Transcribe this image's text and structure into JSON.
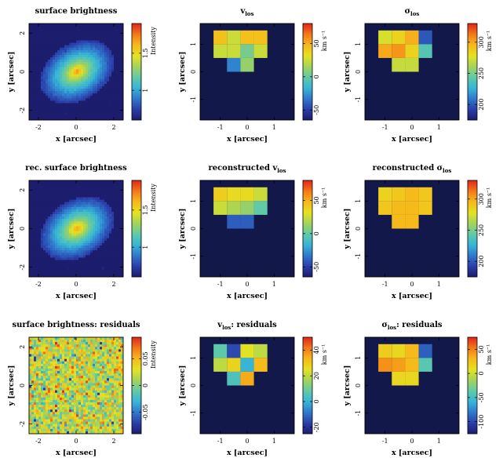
{
  "palette": [
    "#1d1d6e",
    "#2a3da8",
    "#2f78cc",
    "#37b5d6",
    "#5fc9a8",
    "#a4d35a",
    "#e3e222",
    "#f7b91b",
    "#f47a18",
    "#e0251a"
  ],
  "background_color": "#13184a",
  "chart_data": [
    {
      "type": "heatmap",
      "kind": "image",
      "title_main": "surface brightness",
      "title_sub": "",
      "xlabel": "x [arcsec]",
      "ylabel": "y [arcsec]",
      "xlim": [
        -2.5,
        2.5
      ],
      "ylim": [
        -2.5,
        2.5
      ],
      "xticks": [
        -2,
        0,
        2
      ],
      "yticks": [
        -2,
        0,
        2
      ],
      "colorbar": {
        "label": "Intensity",
        "ticks": [
          1,
          1.5
        ],
        "range": [
          0.6,
          1.9
        ]
      },
      "model": {
        "center": [
          0.05,
          0.0
        ],
        "axis_ratio": 0.7,
        "position_angle_deg": 30,
        "noise": false
      }
    },
    {
      "type": "heatmap",
      "kind": "grid",
      "title_main": "v",
      "title_sub": "los",
      "xlabel": "x [arcsec]",
      "ylabel": "y [arcsec]",
      "xlim": [
        -1.75,
        1.75
      ],
      "ylim": [
        -1.75,
        1.75
      ],
      "xticks": [
        -1,
        0,
        1
      ],
      "yticks": [
        -1,
        0,
        1
      ],
      "colorbar": {
        "label": "km s⁻¹",
        "ticks": [
          -50,
          0,
          50
        ],
        "range": [
          -65,
          80
        ]
      },
      "grid": {
        "x0": -1.25,
        "y0": 1.25,
        "cell": 0.5,
        "cols": 5,
        "rows": [
          [
            45,
            25,
            45,
            45,
            null
          ],
          [
            25,
            25,
            5,
            25,
            null
          ],
          [
            null,
            -30,
            12,
            null,
            null
          ]
        ]
      }
    },
    {
      "type": "heatmap",
      "kind": "grid",
      "title_main": "σ",
      "title_sub": "los",
      "xlabel": "x [arcsec]",
      "ylabel": "y [arcsec]",
      "xlim": [
        -1.75,
        1.75
      ],
      "ylim": [
        -1.75,
        1.75
      ],
      "xticks": [
        -1,
        0,
        1
      ],
      "yticks": [
        -1,
        0,
        1
      ],
      "colorbar": {
        "label": "km s⁻¹",
        "ticks": [
          200,
          250,
          300
        ],
        "range": [
          175,
          330
        ]
      },
      "grid": {
        "x0": -1.25,
        "y0": 1.25,
        "cell": 0.5,
        "cols": 5,
        "rows": [
          [
            275,
            285,
            298,
            200,
            null
          ],
          [
            300,
            305,
            285,
            240,
            null
          ],
          [
            null,
            270,
            270,
            null,
            null
          ]
        ]
      }
    },
    {
      "type": "heatmap",
      "kind": "image",
      "title_main": "rec. surface brightness",
      "title_sub": "",
      "xlabel": "x [arcsec]",
      "ylabel": "y [arcsec]",
      "xlim": [
        -2.5,
        2.5
      ],
      "ylim": [
        -2.5,
        2.5
      ],
      "xticks": [
        -2,
        0,
        2
      ],
      "yticks": [
        -2,
        0,
        2
      ],
      "colorbar": {
        "label": "Intensity",
        "ticks": [
          1,
          1.5
        ],
        "range": [
          0.6,
          1.9
        ]
      },
      "model": {
        "center": [
          0.05,
          0.0
        ],
        "axis_ratio": 0.7,
        "position_angle_deg": 30,
        "noise": false
      }
    },
    {
      "type": "heatmap",
      "kind": "grid",
      "title_main": "reconstructed v",
      "title_sub": "los",
      "xlabel": "x [arcsec]",
      "ylabel": "y [arcsec]",
      "xlim": [
        -1.75,
        1.75
      ],
      "ylim": [
        -1.75,
        1.75
      ],
      "xticks": [
        -1,
        0,
        1
      ],
      "yticks": [
        -1,
        0,
        1
      ],
      "colorbar": {
        "label": "km s⁻¹",
        "ticks": [
          -50,
          0,
          50
        ],
        "range": [
          -65,
          80
        ]
      },
      "grid": {
        "x0": -1.25,
        "y0": 1.25,
        "cell": 0.5,
        "cols": 5,
        "rows": [
          [
            40,
            35,
            35,
            25,
            null
          ],
          [
            25,
            18,
            12,
            0,
            null
          ],
          [
            null,
            -40,
            -40,
            null,
            null
          ]
        ]
      }
    },
    {
      "type": "heatmap",
      "kind": "grid",
      "title_main": "reconstructed σ",
      "title_sub": "los",
      "xlabel": "x [arcsec]",
      "ylabel": "y [arcsec]",
      "xlim": [
        -1.75,
        1.75
      ],
      "ylim": [
        -1.75,
        1.75
      ],
      "xticks": [
        -1,
        0,
        1
      ],
      "yticks": [
        -1,
        0,
        1
      ],
      "colorbar": {
        "label": "km s⁻¹",
        "ticks": [
          200,
          250,
          300
        ],
        "range": [
          175,
          330
        ]
      },
      "grid": {
        "x0": -1.25,
        "y0": 1.25,
        "cell": 0.5,
        "cols": 5,
        "rows": [
          [
            285,
            290,
            295,
            290,
            null
          ],
          [
            290,
            295,
            295,
            290,
            null
          ],
          [
            null,
            295,
            295,
            null,
            null
          ]
        ]
      }
    },
    {
      "type": "heatmap",
      "kind": "image",
      "title_main": "surface brightness: residuals",
      "title_sub": "",
      "xlabel": "x [arcsec]",
      "ylabel": "y [arcsec]",
      "xlim": [
        -2.5,
        2.5
      ],
      "ylim": [
        -2.5,
        2.5
      ],
      "xticks": [
        -2,
        0,
        2
      ],
      "yticks": [
        -2,
        0,
        2
      ],
      "colorbar": {
        "label": "Intensity",
        "ticks": [
          -0.05,
          0,
          0.05
        ],
        "range": [
          -0.09,
          0.09
        ]
      },
      "model": {
        "noise": true,
        "mean": 0.02,
        "spread": 0.025
      }
    },
    {
      "type": "heatmap",
      "kind": "grid",
      "title_main": "v",
      "title_sub": "los",
      "title_suffix": ": residuals",
      "xlabel": "x [arcsec]",
      "ylabel": "y [arcsec]",
      "xlim": [
        -1.75,
        1.75
      ],
      "ylim": [
        -1.75,
        1.75
      ],
      "xticks": [
        -1,
        0,
        1
      ],
      "yticks": [
        -1,
        0,
        1
      ],
      "colorbar": {
        "label": "km s⁻¹",
        "ticks": [
          -20,
          0,
          20,
          40
        ],
        "range": [
          -25,
          50
        ]
      },
      "grid": {
        "x0": -1.25,
        "y0": 1.25,
        "cell": 0.5,
        "cols": 5,
        "rows": [
          [
            8,
            -15,
            25,
            20,
            null
          ],
          [
            20,
            28,
            0,
            33,
            null
          ],
          [
            null,
            5,
            35,
            null,
            null
          ]
        ]
      }
    },
    {
      "type": "heatmap",
      "kind": "grid",
      "title_main": "σ",
      "title_sub": "los",
      "title_suffix": ": residuals",
      "xlabel": "x [arcsec]",
      "ylabel": "y [arcsec]",
      "xlim": [
        -1.75,
        1.75
      ],
      "ylim": [
        -1.75,
        1.75
      ],
      "xticks": [
        -1,
        0,
        1
      ],
      "yticks": [
        -1,
        0,
        1
      ],
      "colorbar": {
        "label": "km s⁻¹",
        "ticks": [
          -100,
          -50,
          0,
          50
        ],
        "range": [
          -125,
          75
        ]
      },
      "grid": {
        "x0": -1.25,
        "y0": 1.25,
        "cell": 0.5,
        "cols": 5,
        "rows": [
          [
            20,
            15,
            30,
            -90,
            null
          ],
          [
            45,
            40,
            30,
            -40,
            null
          ],
          [
            null,
            15,
            15,
            null,
            null
          ]
        ]
      }
    }
  ]
}
